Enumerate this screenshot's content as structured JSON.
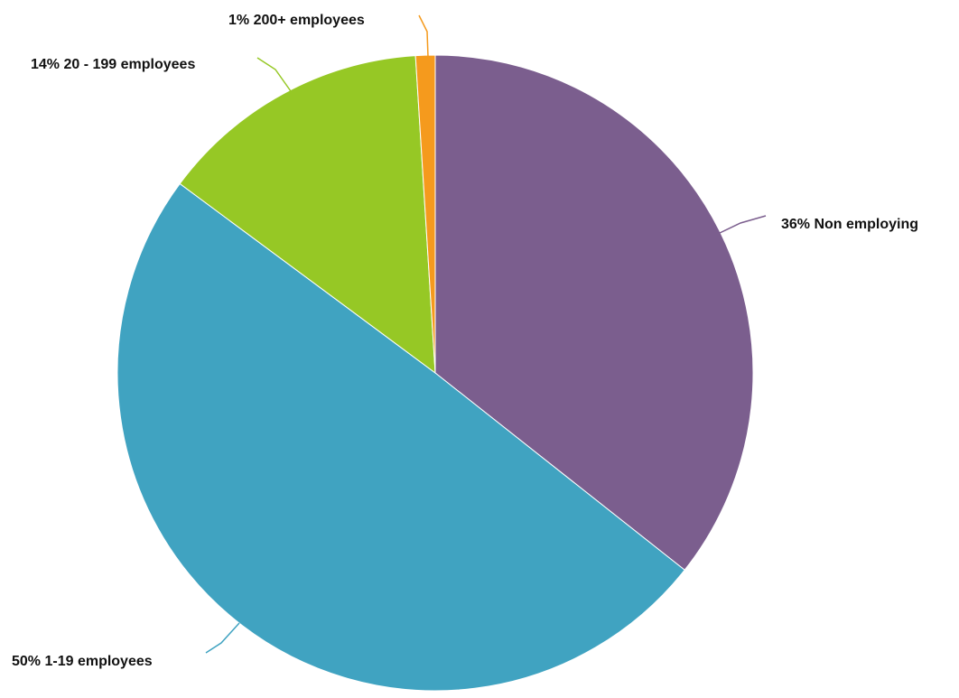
{
  "chart_data": {
    "type": "pie",
    "slices": [
      {
        "label": "Non employing",
        "value": 36,
        "display": "36% Non employing",
        "color": "#7b5e8e"
      },
      {
        "label": "1-19 employees",
        "value": 50,
        "display": "50% 1-19 employees",
        "color": "#40a3c1"
      },
      {
        "label": "20 - 199 employees",
        "value": 14,
        "display": "14% 20 - 199 employees",
        "color": "#96c825"
      },
      {
        "label": "200+ employees",
        "value": 1,
        "display": "1% 200+ employees",
        "color": "#f59a1d"
      }
    ],
    "legend": "none",
    "labels": "outside with leader lines"
  }
}
